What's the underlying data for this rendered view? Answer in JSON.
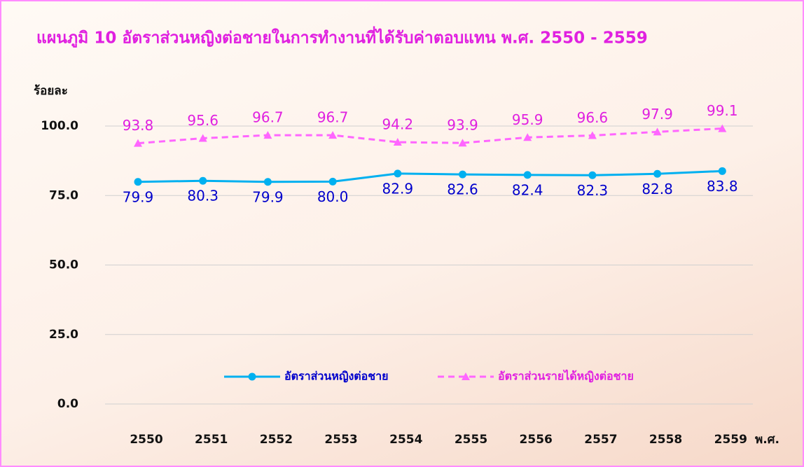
{
  "chart_data": {
    "type": "line",
    "title": "แผนภูมิ 10  อัตราส่วนหญิงต่อชายในการทำงานที่ได้รับค่าตอบแทน พ.ศ. 2550 - 2559",
    "y_label": "ร้อยละ",
    "x_label": "พ.ศ.",
    "categories": [
      "2550",
      "2551",
      "2552",
      "2553",
      "2554",
      "2555",
      "2556",
      "2557",
      "2558",
      "2559"
    ],
    "series": [
      {
        "name": "อัตราส่วนหญิงต่อชาย",
        "color": "#00b0f0",
        "label_color": "#0000cc",
        "marker": "circle",
        "dash": false,
        "values": [
          79.9,
          80.3,
          79.9,
          80.0,
          82.9,
          82.6,
          82.4,
          82.3,
          82.8,
          83.8
        ],
        "value_labels": [
          "79.9",
          "80.3",
          "79.9",
          "80.0",
          "82.9",
          "82.6",
          "82.4",
          "82.3",
          "82.8",
          "83.8"
        ]
      },
      {
        "name": "อัตราส่วนรายได้หญิงต่อชาย",
        "color": "#ff66ff",
        "label_color": "#e020e0",
        "marker": "triangle",
        "dash": true,
        "values": [
          93.8,
          95.6,
          96.7,
          96.7,
          94.2,
          93.9,
          95.9,
          96.6,
          97.9,
          99.1
        ],
        "value_labels": [
          "93.8",
          "95.6",
          "96.7",
          "96.7",
          "94.2",
          "93.9",
          "95.9",
          "96.6",
          "97.9",
          "99.1"
        ]
      }
    ],
    "ylim": [
      0,
      100
    ],
    "yticks": [
      {
        "value": 0,
        "label": "0.0"
      },
      {
        "value": 25,
        "label": "25.0"
      },
      {
        "value": 50,
        "label": "50.0"
      },
      {
        "value": 75,
        "label": "75.0"
      },
      {
        "value": 100,
        "label": "100.0"
      }
    ],
    "grid": true,
    "legend": "bottom"
  }
}
